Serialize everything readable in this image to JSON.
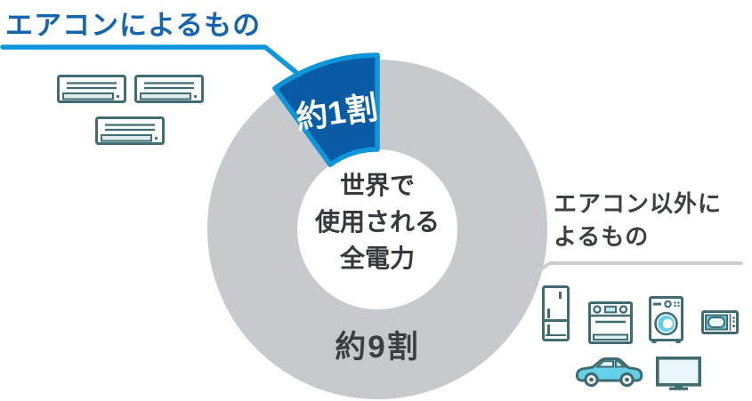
{
  "chart_data": {
    "type": "pie",
    "subtype": "donut",
    "title": "世界で使用される全電力",
    "center_label": {
      "line1": "世界で",
      "line2": "使用される",
      "line3": "全電力"
    },
    "start_angle_deg": 90,
    "direction": "counterclockwise",
    "slices": [
      {
        "name": "エアコンによるもの",
        "value_label": "約1割",
        "percent": 10,
        "color": "#0a5ba6",
        "border_color": "#0e95da",
        "highlighted": true
      },
      {
        "name": "エアコン以外によるもの",
        "value_label": "約9割",
        "percent": 90,
        "color": "#c7cacd",
        "border_color": null,
        "highlighted": false
      }
    ],
    "legend_position": "none",
    "grid": false
  },
  "callouts": {
    "aircon": {
      "title": "エアコンによるもの"
    },
    "other": {
      "line1": "エアコン以外に",
      "line2": "よるもの"
    }
  },
  "icons": {
    "aircon_group": [
      "air-conditioner",
      "air-conditioner",
      "air-conditioner"
    ],
    "other_group": [
      "refrigerator",
      "oven",
      "washing-machine",
      "microwave-oven",
      "car",
      "television"
    ]
  },
  "colors": {
    "title_blue": "#1565ae",
    "accent_blue": "#0e95da",
    "slice_blue": "#0a5ba6",
    "donut_gray": "#c7cacd",
    "leader_gray": "#c9cdd0",
    "text_dark": "#3b3f42",
    "icon_teal": "#3f6c70",
    "icon_blue": "#66cfe9",
    "icon_blue_pale": "#e9f6fa"
  }
}
